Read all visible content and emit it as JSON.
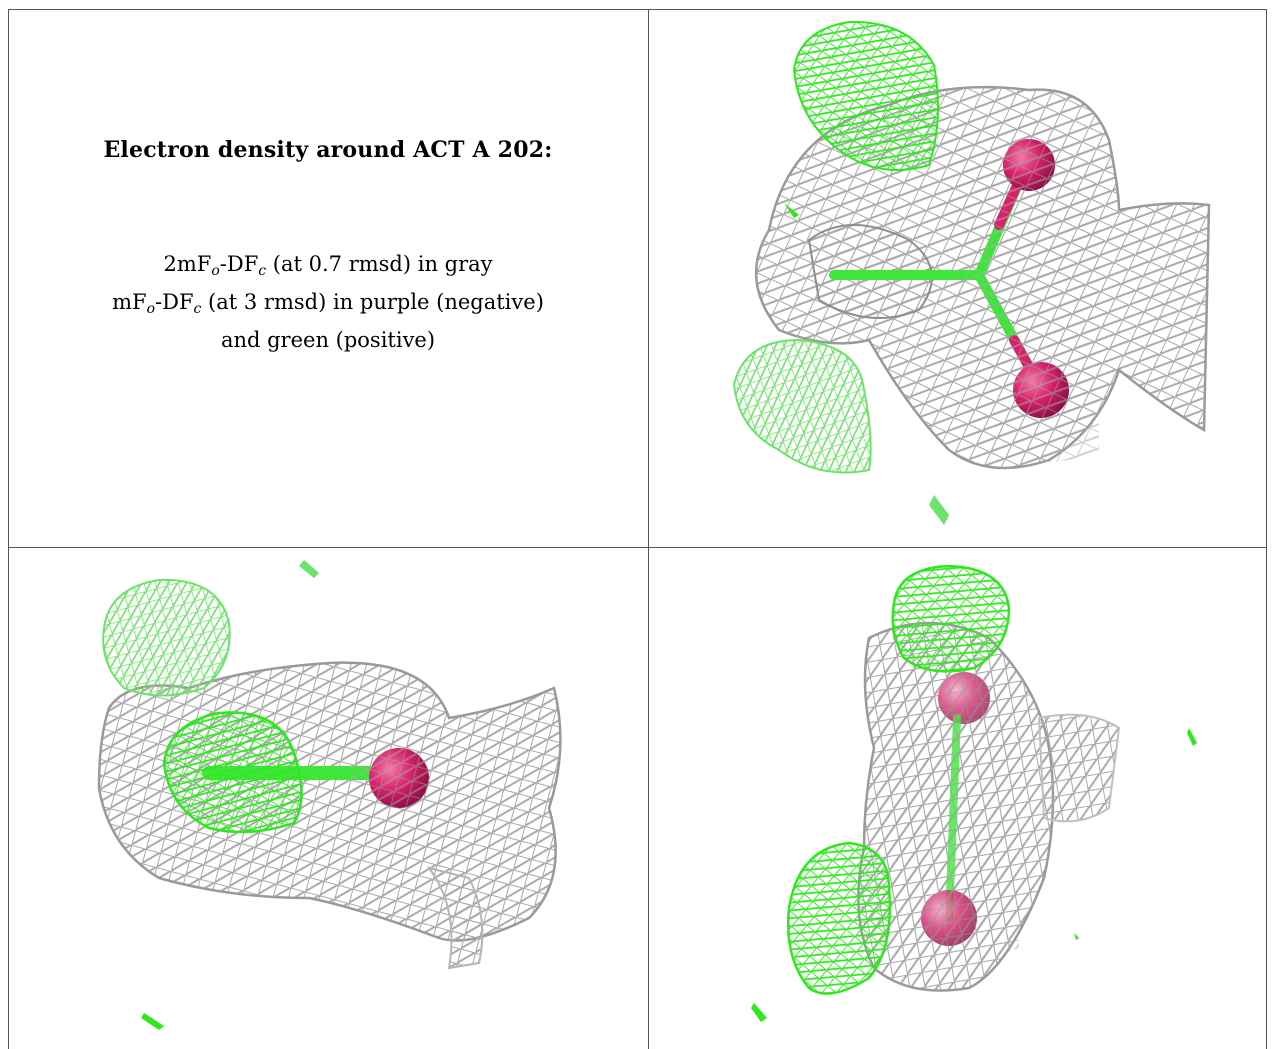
{
  "caption": {
    "title": "Electron density around ACT A 202:",
    "line1": {
      "a": "2mF",
      "o": "o",
      "b": "-DF",
      "c": "c",
      "rest": " (at 0.7 rmsd) in gray"
    },
    "line2": {
      "a": "mF",
      "o": "o",
      "b": "-DF",
      "c": "c",
      "rest": " (at 3 rmsd) in purple (negative)"
    },
    "line3": "and green (positive)"
  },
  "colors": {
    "mesh_gray": "#a8a8a8",
    "mesh_green": "#2ee81e",
    "atom_pink": "#d6226a",
    "bond_green": "#3fe63a",
    "border": "#555555"
  },
  "panels": [
    {
      "name": "view-1",
      "description": "electron density mesh view"
    },
    {
      "name": "view-2",
      "description": "electron density mesh view"
    },
    {
      "name": "view-3",
      "description": "electron density mesh view"
    }
  ]
}
